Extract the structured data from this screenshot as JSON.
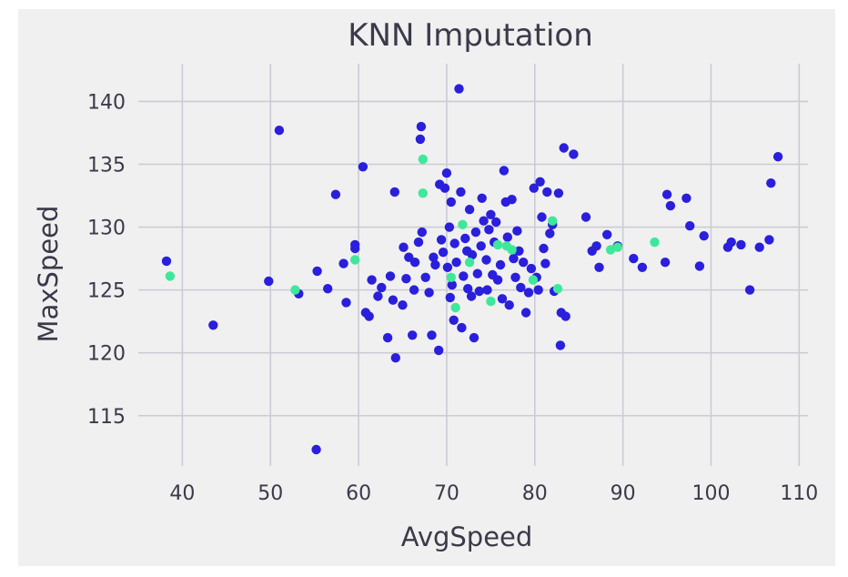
{
  "chart_data": {
    "type": "scatter",
    "title": "KNN Imputation",
    "xlabel": "AvgSpeed",
    "ylabel": "MaxSpeed",
    "xlim": [
      35,
      111
    ],
    "ylim": [
      111,
      143
    ],
    "xticks": [
      40,
      50,
      60,
      70,
      80,
      90,
      100,
      110
    ],
    "yticks": [
      115,
      120,
      125,
      130,
      135,
      140
    ],
    "grid": true,
    "colors": {
      "background": "#f0f0f0",
      "grid": "#cbcbd6",
      "text": "#3a3a4a",
      "observed": "#2a1fdc",
      "imputed": "#3ee89a"
    },
    "series": [
      {
        "points": [
          [
            38.2,
            127.3
          ],
          [
            43.5,
            122.2
          ],
          [
            49.8,
            125.7
          ],
          [
            51.0,
            137.7
          ],
          [
            53.2,
            124.7
          ],
          [
            55.2,
            112.3
          ],
          [
            55.3,
            126.5
          ],
          [
            56.5,
            125.1
          ],
          [
            57.4,
            132.6
          ],
          [
            58.3,
            127.1
          ],
          [
            58.6,
            124.0
          ],
          [
            59.6,
            128.3
          ],
          [
            59.6,
            128.6
          ],
          [
            60.5,
            134.8
          ],
          [
            60.8,
            123.2
          ],
          [
            61.2,
            122.9
          ],
          [
            61.5,
            125.8
          ],
          [
            62.2,
            124.5
          ],
          [
            62.6,
            125.2
          ],
          [
            63.3,
            121.2
          ],
          [
            63.6,
            126.1
          ],
          [
            63.9,
            124.2
          ],
          [
            64.1,
            132.8
          ],
          [
            64.2,
            119.6
          ],
          [
            65.0,
            123.8
          ],
          [
            65.1,
            128.4
          ],
          [
            65.4,
            125.9
          ],
          [
            65.7,
            127.6
          ],
          [
            66.1,
            121.4
          ],
          [
            66.3,
            125.0
          ],
          [
            66.4,
            127.2
          ],
          [
            66.8,
            128.8
          ],
          [
            67.0,
            137.0
          ],
          [
            67.1,
            138.0
          ],
          [
            67.2,
            129.6
          ],
          [
            67.6,
            126.0
          ],
          [
            68.0,
            124.8
          ],
          [
            68.3,
            121.4
          ],
          [
            68.5,
            127.6
          ],
          [
            68.7,
            127.0
          ],
          [
            69.1,
            120.2
          ],
          [
            69.2,
            133.4
          ],
          [
            69.4,
            129.0
          ],
          [
            69.6,
            128.0
          ],
          [
            69.8,
            133.1
          ],
          [
            70.0,
            134.3
          ],
          [
            70.1,
            126.8
          ],
          [
            70.3,
            130.0
          ],
          [
            70.4,
            124.4
          ],
          [
            70.5,
            132.0
          ],
          [
            70.6,
            125.4
          ],
          [
            70.8,
            122.6
          ],
          [
            70.9,
            128.7
          ],
          [
            71.1,
            127.2
          ],
          [
            71.4,
            141.0
          ],
          [
            71.6,
            132.8
          ],
          [
            71.7,
            122.0
          ],
          [
            71.9,
            126.1
          ],
          [
            72.1,
            129.1
          ],
          [
            72.3,
            128.1
          ],
          [
            72.4,
            125.1
          ],
          [
            72.6,
            131.4
          ],
          [
            72.8,
            124.5
          ],
          [
            72.9,
            127.8
          ],
          [
            73.1,
            121.2
          ],
          [
            73.3,
            129.6
          ],
          [
            73.5,
            126.3
          ],
          [
            73.7,
            124.9
          ],
          [
            73.9,
            128.5
          ],
          [
            74.0,
            132.3
          ],
          [
            74.2,
            130.5
          ],
          [
            74.5,
            127.4
          ],
          [
            74.6,
            125.0
          ],
          [
            74.8,
            129.8
          ],
          [
            75.0,
            131.0
          ],
          [
            75.2,
            126.2
          ],
          [
            75.4,
            128.8
          ],
          [
            75.6,
            130.4
          ],
          [
            75.8,
            125.8
          ],
          [
            76.1,
            127.0
          ],
          [
            76.3,
            124.3
          ],
          [
            76.5,
            134.5
          ],
          [
            76.7,
            132.0
          ],
          [
            76.9,
            129.2
          ],
          [
            77.1,
            123.8
          ],
          [
            77.4,
            132.2
          ],
          [
            77.6,
            127.5
          ],
          [
            77.8,
            126.0
          ],
          [
            78.0,
            129.7
          ],
          [
            78.2,
            128.1
          ],
          [
            78.4,
            125.2
          ],
          [
            78.7,
            127.2
          ],
          [
            79.0,
            123.2
          ],
          [
            79.3,
            124.8
          ],
          [
            79.6,
            126.7
          ],
          [
            79.9,
            133.1
          ],
          [
            80.2,
            126.0
          ],
          [
            80.4,
            125.0
          ],
          [
            80.6,
            133.6
          ],
          [
            80.8,
            130.8
          ],
          [
            81.0,
            128.3
          ],
          [
            81.2,
            127.1
          ],
          [
            81.4,
            132.8
          ],
          [
            81.7,
            129.5
          ],
          [
            82.0,
            130.2
          ],
          [
            82.2,
            124.9
          ],
          [
            82.7,
            132.7
          ],
          [
            82.9,
            120.6
          ],
          [
            83.0,
            123.2
          ],
          [
            83.3,
            136.3
          ],
          [
            83.5,
            122.9
          ],
          [
            84.4,
            135.8
          ],
          [
            85.8,
            130.8
          ],
          [
            86.5,
            128.1
          ],
          [
            87.0,
            128.5
          ],
          [
            87.3,
            126.8
          ],
          [
            88.2,
            129.4
          ],
          [
            89.4,
            128.5
          ],
          [
            91.2,
            127.5
          ],
          [
            92.2,
            126.8
          ],
          [
            94.8,
            127.2
          ],
          [
            95.0,
            132.6
          ],
          [
            95.4,
            131.7
          ],
          [
            97.2,
            132.3
          ],
          [
            97.6,
            130.1
          ],
          [
            98.7,
            126.9
          ],
          [
            99.2,
            129.3
          ],
          [
            101.9,
            128.4
          ],
          [
            102.3,
            128.8
          ],
          [
            103.4,
            128.6
          ],
          [
            104.4,
            125.0
          ],
          [
            105.5,
            128.4
          ],
          [
            106.6,
            129.0
          ],
          [
            106.8,
            133.5
          ],
          [
            107.6,
            135.6
          ]
        ]
      },
      {
        "points": [
          [
            38.6,
            126.1
          ],
          [
            52.8,
            125.0
          ],
          [
            59.6,
            127.4
          ],
          [
            67.3,
            135.4
          ],
          [
            67.3,
            132.7
          ],
          [
            70.5,
            126.0
          ],
          [
            71.0,
            123.6
          ],
          [
            71.8,
            130.2
          ],
          [
            72.6,
            127.2
          ],
          [
            75.0,
            124.1
          ],
          [
            75.8,
            128.6
          ],
          [
            76.8,
            128.5
          ],
          [
            77.4,
            128.2
          ],
          [
            79.8,
            125.8
          ],
          [
            82.0,
            130.5
          ],
          [
            82.6,
            125.1
          ],
          [
            88.6,
            128.2
          ],
          [
            89.4,
            128.4
          ],
          [
            93.6,
            128.8
          ]
        ]
      }
    ]
  }
}
